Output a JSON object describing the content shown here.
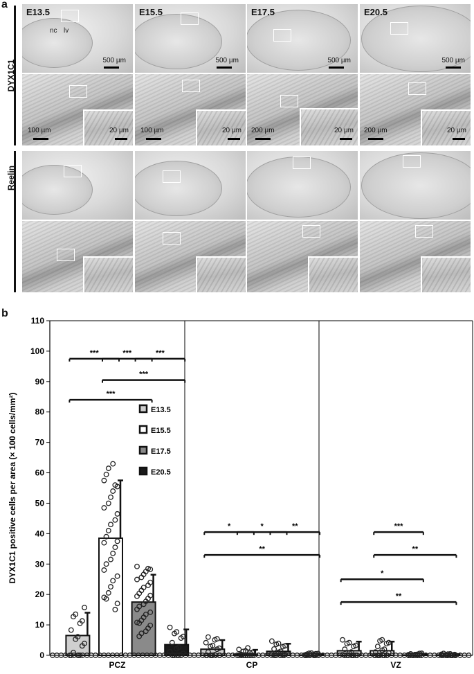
{
  "panel_a": {
    "letter": "a",
    "rows": [
      {
        "label": "DYX1C1",
        "stages": [
          "E13.5",
          "E15.5",
          "E17.5",
          "E20.5"
        ],
        "overview_scale": [
          "500 µm",
          "500 µm",
          "500 µm",
          "500 µm"
        ],
        "zoom_scale": [
          "100 µm",
          "100 µm",
          "200 µm",
          "200 µm"
        ],
        "inset_scale": [
          "20 µm",
          "20 µm",
          "20 µm",
          "20 µm"
        ],
        "annotations": [
          "nc",
          "lv"
        ]
      },
      {
        "label": "Reelin"
      }
    ]
  },
  "panel_b": {
    "letter": "b",
    "chart_data": {
      "type": "bar",
      "ylabel": "DYX1C1 positive cells per area (× 100 cells/mm²)",
      "ylim": [
        0,
        110
      ],
      "yticks": [
        "0",
        "10",
        "20",
        "30",
        "40",
        "50",
        "60",
        "70",
        "80",
        "90",
        "100",
        "110"
      ],
      "categories": [
        "PCZ",
        "CP",
        "VZ"
      ],
      "legend": [
        "E13.5",
        "E15.5",
        "E17.5",
        "E20.5"
      ],
      "series_colors": [
        "#cfcfcf",
        "#ffffff",
        "#8a8a8a",
        "#1a1a1a"
      ],
      "series": [
        {
          "name": "E13.5",
          "values": [
            6.5,
            2,
            1.5
          ],
          "errors": [
            7.5,
            3,
            3
          ]
        },
        {
          "name": "E15.5",
          "values": [
            38.5,
            0.3,
            1.5
          ],
          "errors": [
            19,
            1.5,
            3
          ]
        },
        {
          "name": "E17.5",
          "values": [
            17.5,
            1.3,
            0.1
          ],
          "errors": [
            9,
            2.5,
            0.3
          ]
        },
        {
          "name": "E20.5",
          "values": [
            3.5,
            0.1,
            0.1
          ],
          "errors": [
            5,
            0.3,
            0.3
          ]
        }
      ],
      "significance": [
        {
          "group": "PCZ",
          "from": 0,
          "to": 1,
          "y": 97.5,
          "label": "***"
        },
        {
          "group": "PCZ",
          "from": 1,
          "to": 2,
          "y": 97.5,
          "label": "***"
        },
        {
          "group": "PCZ",
          "from": 2,
          "to": 3,
          "y": 97.5,
          "label": "***"
        },
        {
          "group": "PCZ",
          "from": 1,
          "to": 3,
          "y": 90.5,
          "label": "***"
        },
        {
          "group": "PCZ",
          "from": 0,
          "to": 2,
          "y": 84,
          "label": "***"
        },
        {
          "group": "CP",
          "from": 0,
          "to": 1,
          "y": 40.5,
          "label": "*"
        },
        {
          "group": "CP",
          "from": 1,
          "to": 2,
          "y": 40.5,
          "label": "*"
        },
        {
          "group": "CP",
          "from": 2,
          "to": 3,
          "y": 40.5,
          "label": "**"
        },
        {
          "group": "CP",
          "from": 0,
          "to": 3,
          "y": 33,
          "label": "**"
        },
        {
          "group": "VZ",
          "from": 1,
          "to": 2,
          "y": 40.5,
          "label": "***"
        },
        {
          "group": "VZ",
          "from": 1,
          "to": 3,
          "y": 33,
          "label": "**"
        },
        {
          "group": "VZ",
          "from": 0,
          "to": 2,
          "y": 25,
          "label": "*"
        },
        {
          "group": "VZ",
          "from": 0,
          "to": 3,
          "y": 17.5,
          "label": "**"
        }
      ]
    }
  }
}
